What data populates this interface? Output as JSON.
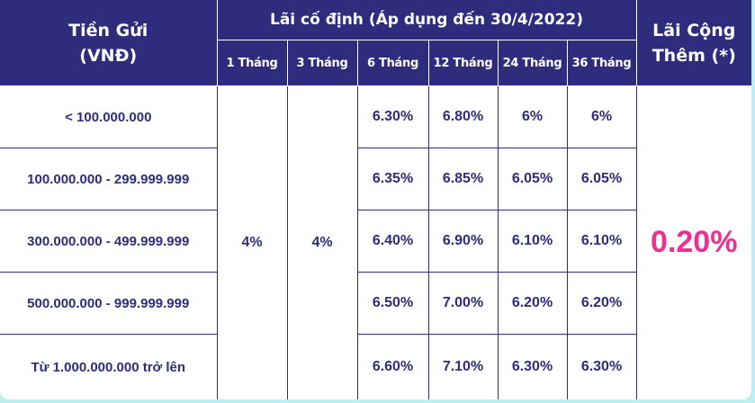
{
  "header": {
    "deposit_title": "Tiền Gửi\n(VNĐ)",
    "fixed_title": "Lãi cố định (Áp dụng đến 30/4/2022)",
    "bonus_title": "Lãi Cộng\nThêm (*)",
    "terms": [
      "1 Tháng",
      "3 Tháng",
      "6 Tháng",
      "12 Tháng",
      "24 Tháng",
      "36 Tháng"
    ]
  },
  "rows": [
    {
      "amount": "< 100.000.000",
      "m6": "6.30%",
      "m12": "6.80%",
      "m24": "6%",
      "m36": "6%"
    },
    {
      "amount": "100.000.000 - 299.999.999",
      "m6": "6.35%",
      "m12": "6.85%",
      "m24": "6.05%",
      "m36": "6.05%"
    },
    {
      "amount": "300.000.000 - 499.999.999",
      "m6": "6.40%",
      "m12": "6.90%",
      "m24": "6.10%",
      "m36": "6.10%"
    },
    {
      "amount": "500.000.000 - 999.999.999",
      "m6": "6.50%",
      "m12": "7.00%",
      "m24": "6.20%",
      "m36": "6.20%"
    },
    {
      "amount": "Từ 1.000.000.000 trở lên",
      "m6": "6.60%",
      "m12": "7.10%",
      "m24": "6.30%",
      "m36": "6.30%"
    }
  ],
  "merged": {
    "m1": "4%",
    "m3": "4%",
    "bonus": "0.20%"
  },
  "colors": {
    "header_bg": "#2e2c7c",
    "text": "#2e2c7c",
    "bonus": "#ee2f8f",
    "frame": "#bfeef0"
  }
}
